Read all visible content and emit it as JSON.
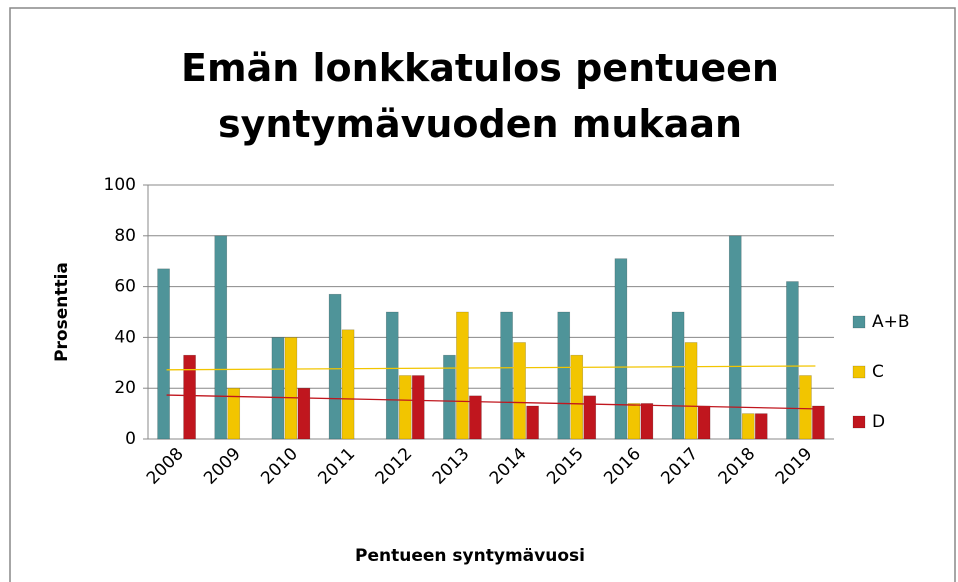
{
  "chart_data": {
    "type": "bar",
    "title": "Emän lonkkatulos pentueen syntymävuoden mukaan",
    "x_label": "Pentueen syntymävuosi",
    "y_label": "Prosenttia",
    "categories": [
      "2008",
      "2009",
      "2010",
      "2011",
      "2012",
      "2013",
      "2014",
      "2015",
      "2016",
      "2017",
      "2018",
      "2019"
    ],
    "series": [
      {
        "name": "A+B",
        "color": "#4f9499",
        "values": [
          67,
          80,
          40,
          57,
          50,
          33,
          50,
          50,
          71,
          50,
          80,
          62
        ]
      },
      {
        "name": "C",
        "color": "#f2c500",
        "values": [
          0,
          20,
          40,
          43,
          25,
          50,
          38,
          33,
          14,
          38,
          10,
          25
        ],
        "trendline": true
      },
      {
        "name": "D",
        "color": "#c0161e",
        "values": [
          33,
          0,
          20,
          0,
          25,
          17,
          13,
          17,
          14,
          13,
          10,
          13
        ],
        "trendline": true
      }
    ],
    "ylim": [
      0,
      100
    ],
    "yticks": [
      0,
      20,
      40,
      60,
      80,
      100
    ],
    "grid": true,
    "legend": "right"
  }
}
